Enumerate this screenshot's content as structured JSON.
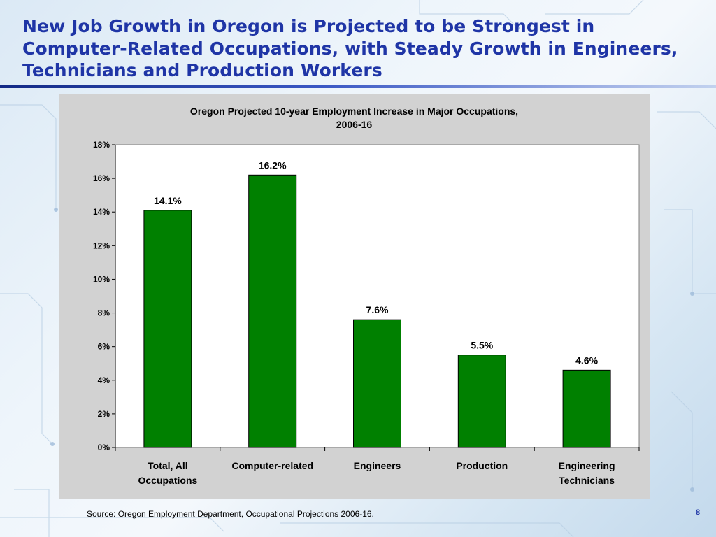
{
  "slide": {
    "title": "New Job Growth in Oregon is Projected to be Strongest in Computer-Related Occupations, with Steady Growth in Engineers, Technicians and Production Workers",
    "source": "Source: Oregon Employment Department, Occupational Projections 2006-16.",
    "page_number": "8"
  },
  "colors": {
    "title": "#1f35a6",
    "bar_fill": "#008000",
    "chart_area": "#d2d2d2",
    "plot_area": "#ffffff"
  },
  "chart_data": {
    "type": "bar",
    "title": "Oregon Projected 10-year Employment Increase in Major Occupations,\n2006-16",
    "categories": [
      [
        "Total, All",
        "Occupations"
      ],
      [
        "Computer-related"
      ],
      [
        "Engineers"
      ],
      [
        "Production"
      ],
      [
        "Engineering",
        "Technicians"
      ]
    ],
    "values": [
      14.1,
      16.2,
      7.6,
      5.5,
      4.6
    ],
    "data_labels": [
      "14.1%",
      "16.2%",
      "7.6%",
      "5.5%",
      "4.6%"
    ],
    "y_ticks": [
      "0%",
      "2%",
      "4%",
      "6%",
      "8%",
      "10%",
      "12%",
      "14%",
      "16%",
      "18%"
    ],
    "ylim": [
      0,
      18
    ],
    "y_step": 2,
    "xlabel": "",
    "ylabel": "",
    "grid": false,
    "legend": "none"
  }
}
